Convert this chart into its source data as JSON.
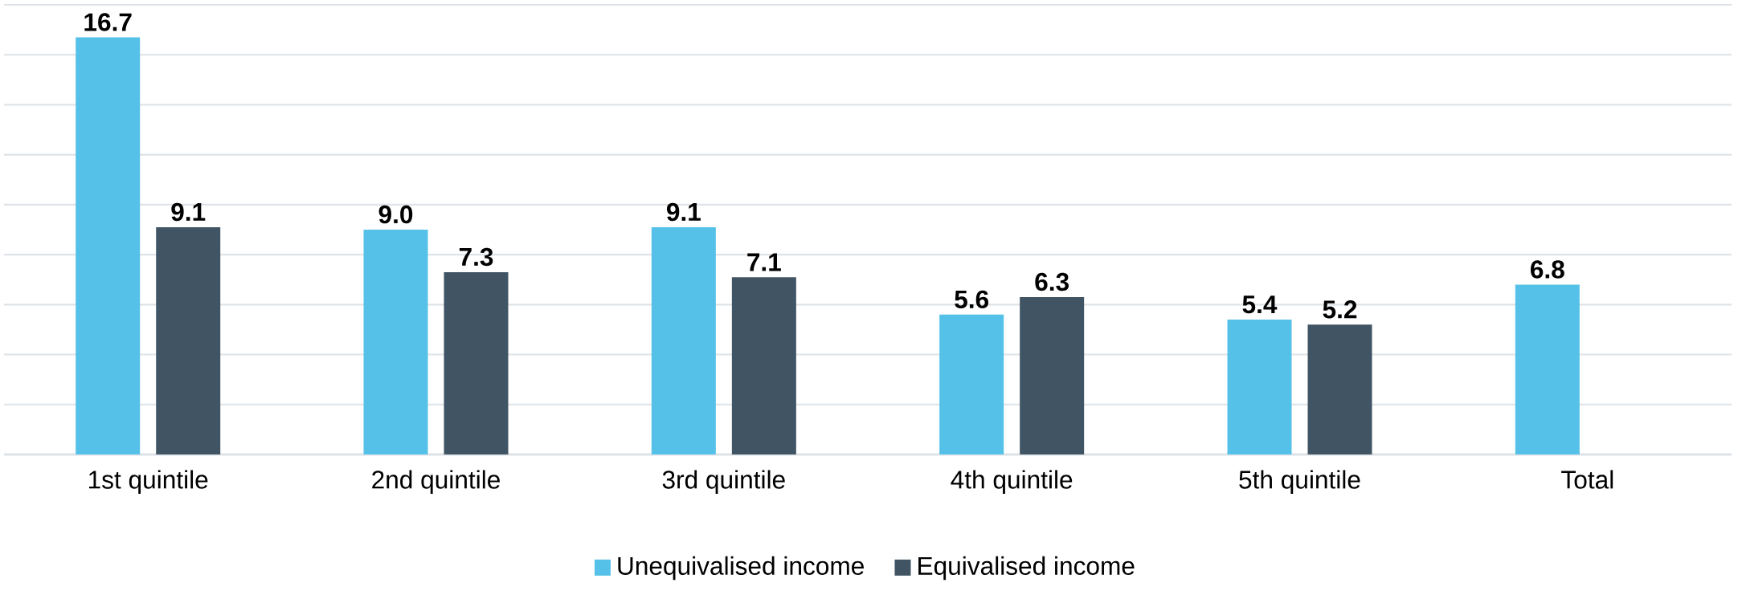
{
  "chart_data": {
    "type": "bar",
    "categories": [
      "1st quintile",
      "2nd quintile",
      "3rd quintile",
      "4th quintile",
      "5th quintile",
      "Total"
    ],
    "series": [
      {
        "name": "Unequivalised income",
        "color": "#56c1e8",
        "values": [
          16.7,
          9.0,
          9.1,
          5.6,
          5.4,
          6.8
        ],
        "value_labels": [
          "16.7",
          "9.0",
          "9.1",
          "5.6",
          "5.4",
          "6.8"
        ]
      },
      {
        "name": "Equivalised income",
        "color": "#405464",
        "values": [
          9.1,
          7.3,
          7.1,
          6.3,
          5.2,
          null
        ],
        "value_labels": [
          "9.1",
          "7.3",
          "7.1",
          "6.3",
          "5.2",
          null
        ]
      }
    ],
    "ylim": [
      0,
      18
    ],
    "yticks": [
      {
        "value": 0,
        "label": null
      },
      {
        "value": 2,
        "label": null
      },
      {
        "value": 4,
        "label": null
      },
      {
        "value": 6,
        "label": null
      },
      {
        "value": 8,
        "label": null
      },
      {
        "value": 10,
        "label": null
      },
      {
        "value": 12,
        "label": null
      },
      {
        "value": 14,
        "label": null
      },
      {
        "value": 16,
        "label": null
      },
      {
        "value": 18,
        "label": null
      }
    ],
    "tick_labels": "x",
    "grid": "y",
    "legend": "bottom"
  }
}
